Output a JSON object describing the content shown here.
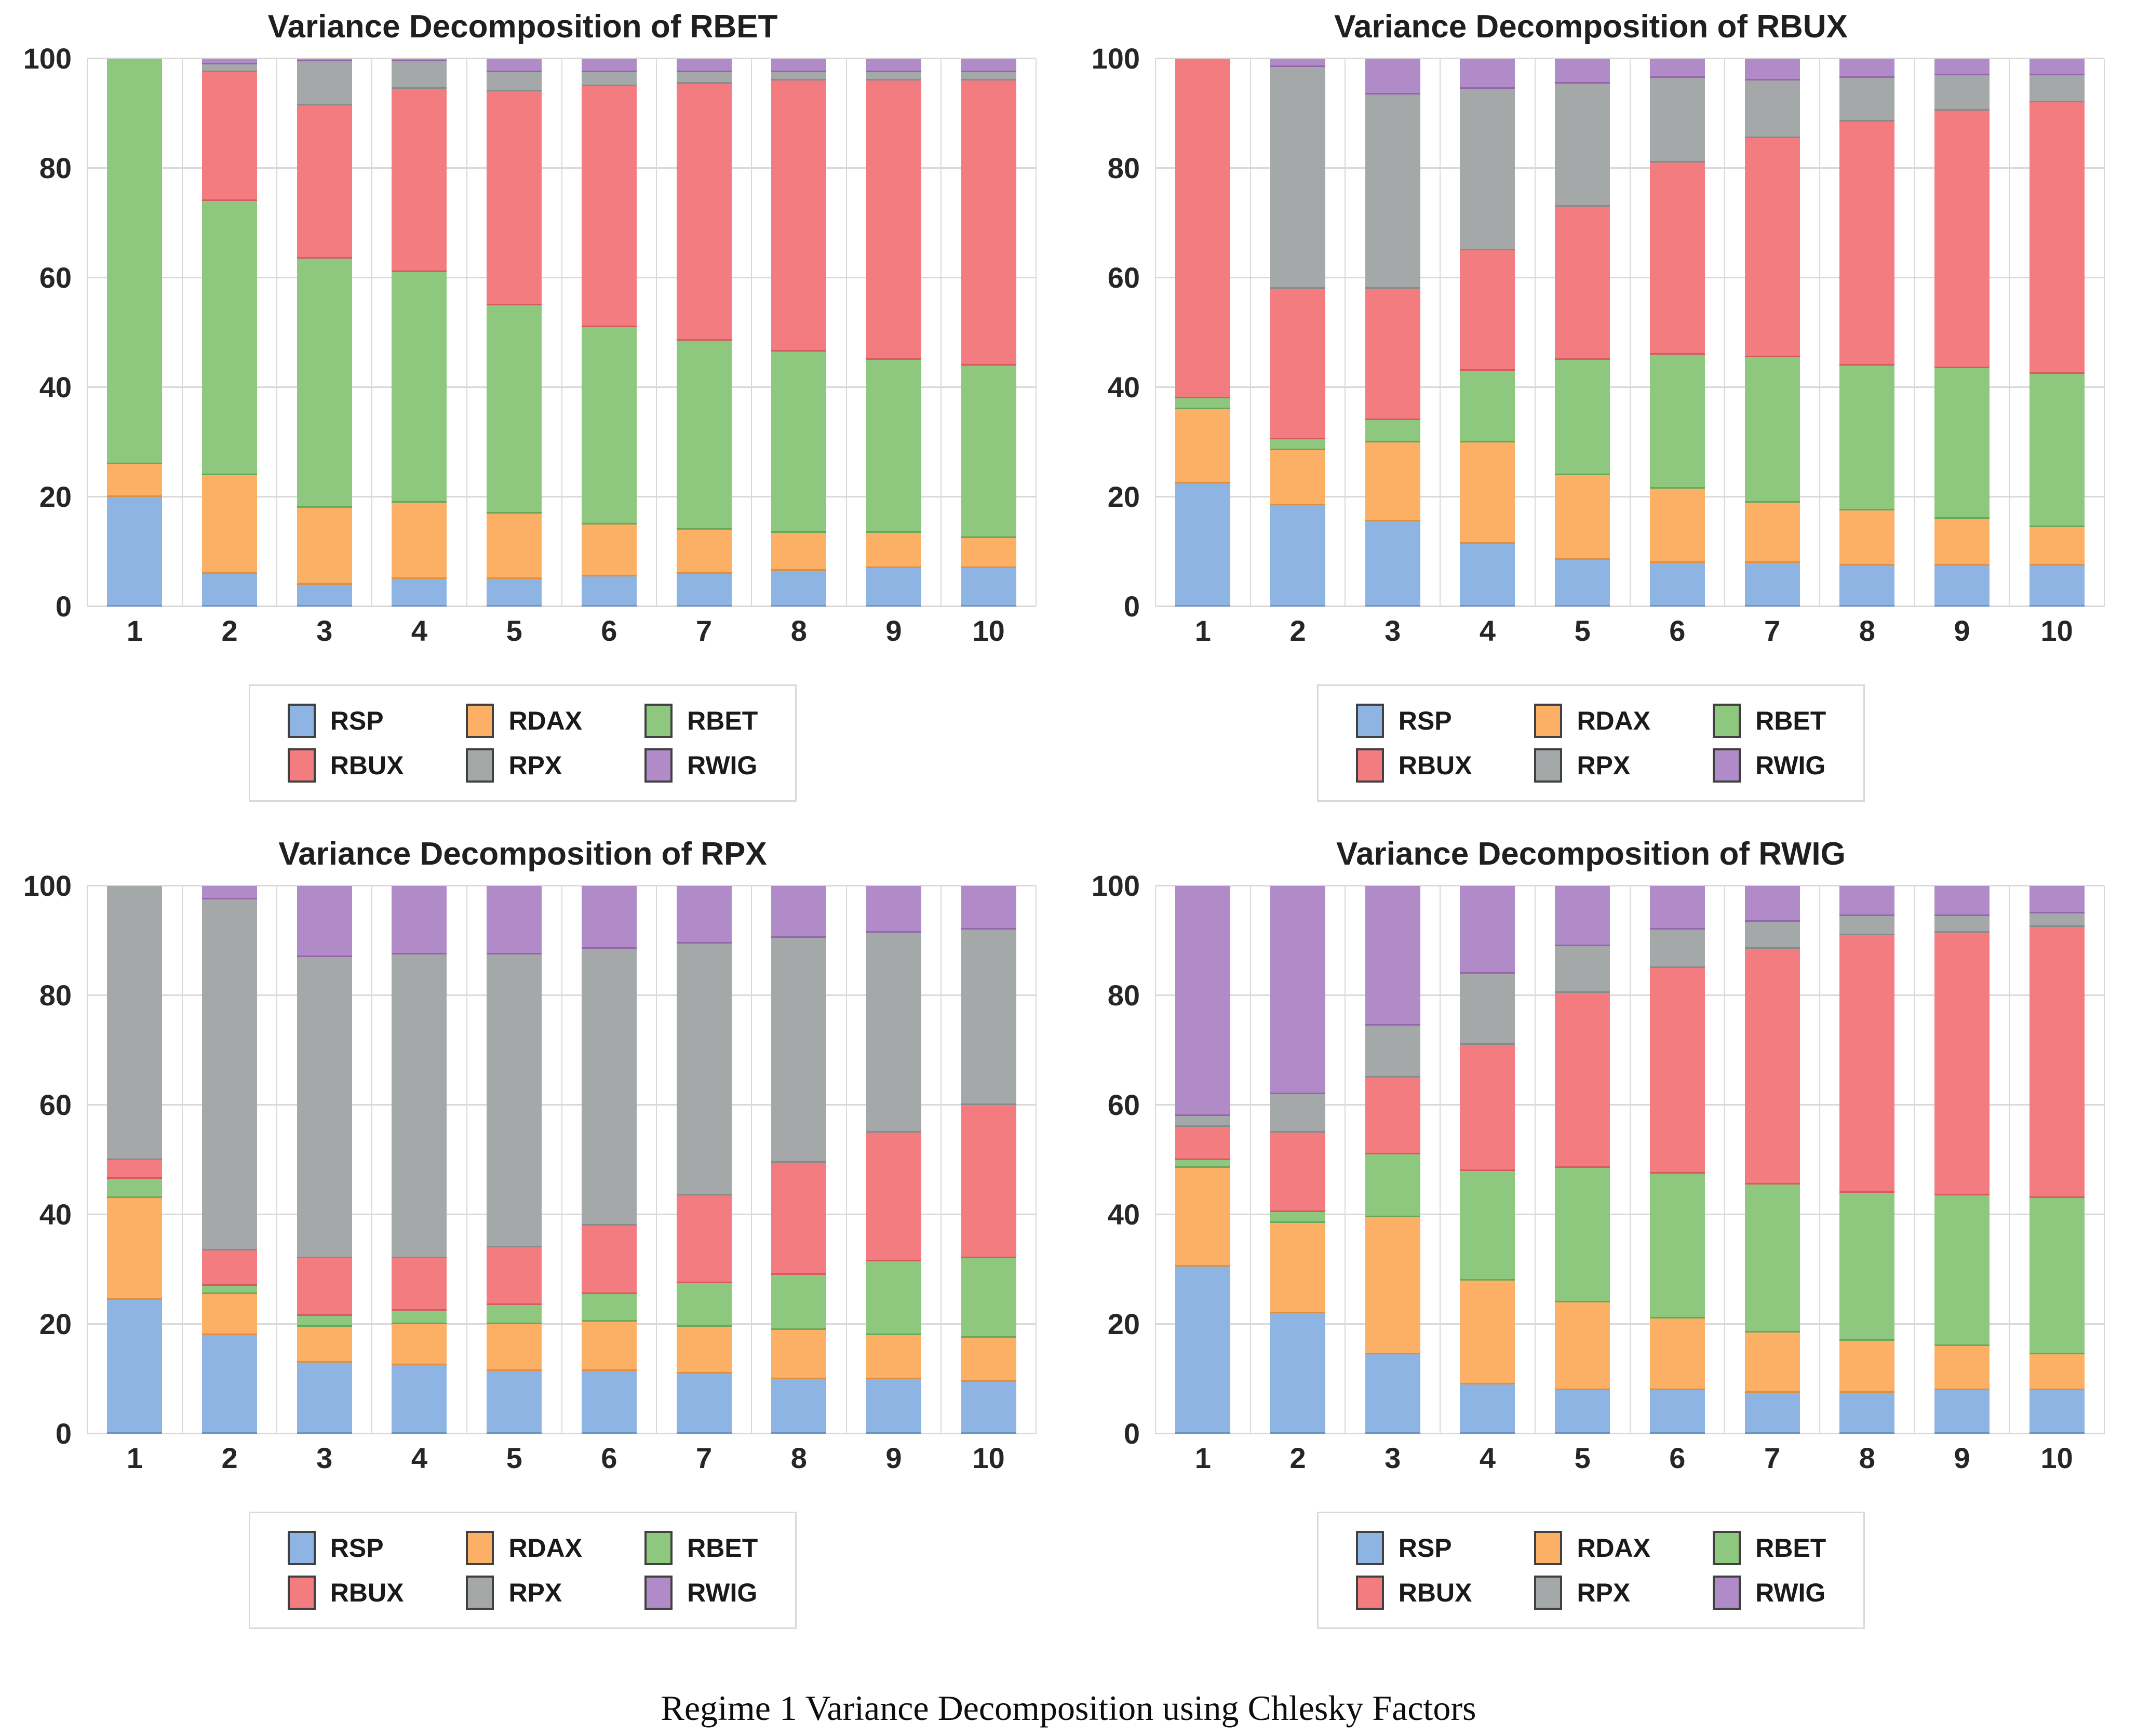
{
  "caption": "Regime 1 Variance Decomposition using Chlesky Factors",
  "colors": {
    "RSP": {
      "fill": "#8db4e2",
      "edge": "#6d94c8"
    },
    "RDAX": {
      "fill": "#fbb066",
      "edge": "#e08f3f"
    },
    "RBET": {
      "fill": "#8dc87e",
      "edge": "#67a85a"
    },
    "RBUX": {
      "fill": "#f37c81",
      "edge": "#d85a60"
    },
    "RPX": {
      "fill": "#a4a8a8",
      "edge": "#868b8b"
    },
    "RWIG": {
      "fill": "#b18bc7",
      "edge": "#9566ad"
    }
  },
  "legend_order": [
    "RSP",
    "RDAX",
    "RBET",
    "RBUX",
    "RPX",
    "RWIG"
  ],
  "chart_data": [
    {
      "type": "bar",
      "stacked": true,
      "title": "Variance Decomposition of RBET",
      "categories": [
        "1",
        "2",
        "3",
        "4",
        "5",
        "6",
        "7",
        "8",
        "9",
        "10"
      ],
      "yticks": [
        0,
        20,
        40,
        60,
        80,
        100
      ],
      "ylim": [
        0,
        100
      ],
      "grid": true,
      "legend_position": "bottom",
      "series": [
        {
          "name": "RSP",
          "values": [
            20,
            6,
            4,
            5,
            5,
            5.5,
            6,
            6.5,
            7,
            7
          ]
        },
        {
          "name": "RDAX",
          "values": [
            6,
            18,
            14,
            14,
            12,
            9.5,
            8,
            7,
            6.5,
            5.5
          ]
        },
        {
          "name": "RBET",
          "values": [
            74,
            50,
            45.5,
            42,
            38,
            36,
            34.5,
            33,
            31.5,
            31.5
          ]
        },
        {
          "name": "RBUX",
          "values": [
            0,
            23.5,
            28,
            33.5,
            39,
            44,
            47,
            49.5,
            51,
            52
          ]
        },
        {
          "name": "RPX",
          "values": [
            0,
            1.5,
            8,
            5,
            3.5,
            2.5,
            2,
            1.5,
            1.5,
            1.5
          ]
        },
        {
          "name": "RWIG",
          "values": [
            0,
            1,
            0.5,
            0.5,
            2.5,
            2.5,
            2.5,
            2.5,
            2.5,
            2.5
          ]
        }
      ]
    },
    {
      "type": "bar",
      "stacked": true,
      "title": "Variance Decomposition of RBUX",
      "categories": [
        "1",
        "2",
        "3",
        "4",
        "5",
        "6",
        "7",
        "8",
        "9",
        "10"
      ],
      "yticks": [
        0,
        20,
        40,
        60,
        80,
        100
      ],
      "ylim": [
        0,
        100
      ],
      "grid": true,
      "legend_position": "bottom",
      "series": [
        {
          "name": "RSP",
          "values": [
            22.5,
            18.5,
            15.5,
            11.5,
            8.5,
            8,
            8,
            7.5,
            7.5,
            7.5
          ]
        },
        {
          "name": "RDAX",
          "values": [
            13.5,
            10,
            14.5,
            18.5,
            15.5,
            13.5,
            11,
            10,
            8.5,
            7
          ]
        },
        {
          "name": "RBET",
          "values": [
            2,
            2,
            4,
            13,
            21,
            24.5,
            26.5,
            26.5,
            27.5,
            28
          ]
        },
        {
          "name": "RBUX",
          "values": [
            62,
            27.5,
            24,
            22,
            28,
            35,
            40,
            44.5,
            47,
            49.5
          ]
        },
        {
          "name": "RPX",
          "values": [
            0,
            40.5,
            35.5,
            29.5,
            22.5,
            15.5,
            10.5,
            8,
            6.5,
            5
          ]
        },
        {
          "name": "RWIG",
          "values": [
            0,
            1.5,
            6.5,
            5.5,
            4.5,
            3.5,
            4,
            3.5,
            3,
            3
          ]
        }
      ]
    },
    {
      "type": "bar",
      "stacked": true,
      "title": "Variance Decomposition of RPX",
      "categories": [
        "1",
        "2",
        "3",
        "4",
        "5",
        "6",
        "7",
        "8",
        "9",
        "10"
      ],
      "yticks": [
        0,
        20,
        40,
        60,
        80,
        100
      ],
      "ylim": [
        0,
        100
      ],
      "grid": true,
      "legend_position": "bottom",
      "series": [
        {
          "name": "RSP",
          "values": [
            24.5,
            18,
            13,
            12.5,
            11.5,
            11.5,
            11,
            10,
            10,
            9.5
          ]
        },
        {
          "name": "RDAX",
          "values": [
            18.5,
            7.5,
            6.5,
            7.5,
            8.5,
            9,
            8.5,
            9,
            8,
            8
          ]
        },
        {
          "name": "RBET",
          "values": [
            3.5,
            1.5,
            2,
            2.5,
            3.5,
            5,
            8,
            10,
            13.5,
            14.5
          ]
        },
        {
          "name": "RBUX",
          "values": [
            3.5,
            6.5,
            10.5,
            9.5,
            10.5,
            12.5,
            16,
            20.5,
            23.5,
            28
          ]
        },
        {
          "name": "RPX",
          "values": [
            50,
            64,
            55,
            55.5,
            53.5,
            50.5,
            46,
            41,
            36.5,
            32
          ]
        },
        {
          "name": "RWIG",
          "values": [
            0,
            2.5,
            13,
            12.5,
            12.5,
            11.5,
            10.5,
            9.5,
            8.5,
            8
          ]
        }
      ]
    },
    {
      "type": "bar",
      "stacked": true,
      "title": "Variance Decomposition of RWIG",
      "categories": [
        "1",
        "2",
        "3",
        "4",
        "5",
        "6",
        "7",
        "8",
        "9",
        "10"
      ],
      "yticks": [
        0,
        20,
        40,
        60,
        80,
        100
      ],
      "ylim": [
        0,
        100
      ],
      "grid": true,
      "legend_position": "bottom",
      "series": [
        {
          "name": "RSP",
          "values": [
            30.5,
            22,
            14.5,
            9,
            8,
            8,
            7.5,
            7.5,
            8,
            8
          ]
        },
        {
          "name": "RDAX",
          "values": [
            18,
            16.5,
            25,
            19,
            16,
            13,
            11,
            9.5,
            8,
            6.5
          ]
        },
        {
          "name": "RBET",
          "values": [
            1.5,
            2,
            11.5,
            20,
            24.5,
            26.5,
            27,
            27,
            27.5,
            28.5
          ]
        },
        {
          "name": "RBUX",
          "values": [
            6,
            14.5,
            14,
            23,
            32,
            37.5,
            43,
            47,
            48,
            49.5
          ]
        },
        {
          "name": "RPX",
          "values": [
            2,
            7,
            9.5,
            13,
            8.5,
            7,
            5,
            3.5,
            3,
            2.5
          ]
        },
        {
          "name": "RWIG",
          "values": [
            42,
            38,
            25.5,
            16,
            11,
            8,
            6.5,
            5.5,
            5.5,
            5
          ]
        }
      ]
    }
  ]
}
